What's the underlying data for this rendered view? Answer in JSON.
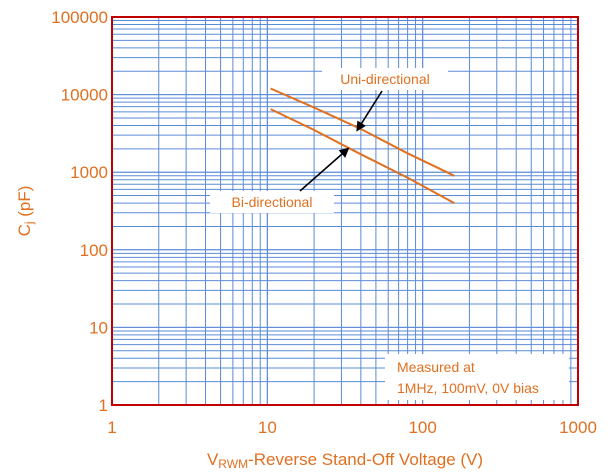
{
  "colors": {
    "frame": "#C00000",
    "grid": "#5B8BD6",
    "text": "#E07020",
    "curve": "#E07020",
    "arrow": "#000000",
    "background": "#FFFFFF"
  },
  "chart_data": {
    "type": "line",
    "xscale": "log",
    "yscale": "log",
    "xlim": [
      1,
      1000
    ],
    "ylim": [
      1,
      100000
    ],
    "xticks": [
      1,
      10,
      100,
      1000
    ],
    "xtick_labels": [
      "1",
      "10",
      "100",
      "1000"
    ],
    "yticks": [
      1,
      10,
      100,
      1000,
      10000,
      100000
    ],
    "ytick_labels": [
      "1",
      "10",
      "100",
      "1000",
      "10000",
      "100000"
    ],
    "ylabel_main": "C",
    "ylabel_sub": "j",
    "ylabel_rest": " (pF)",
    "xlabel_main": "V",
    "xlabel_sub": "RWM",
    "xlabel_rest": "-Reverse Stand-Off Voltage (V)",
    "grid": true,
    "series": [
      {
        "name": "Uni-directional",
        "x": [
          10.5,
          20,
          40,
          80,
          160
        ],
        "y": [
          12000,
          6800,
          3600,
          1750,
          900
        ]
      },
      {
        "name": "Bi-directional",
        "x": [
          10.5,
          20,
          40,
          80,
          160
        ],
        "y": [
          6500,
          3500,
          1700,
          850,
          400
        ]
      }
    ],
    "annotations": [
      {
        "text": "Uni-directional",
        "arrow_to": {
          "x": 38,
          "y": 3500
        }
      },
      {
        "text": "Bi-directional",
        "arrow_to": {
          "x": 33,
          "y": 2000
        }
      }
    ],
    "note_lines": [
      "Measured at",
      "1MHz, 100mV, 0V bias"
    ]
  }
}
